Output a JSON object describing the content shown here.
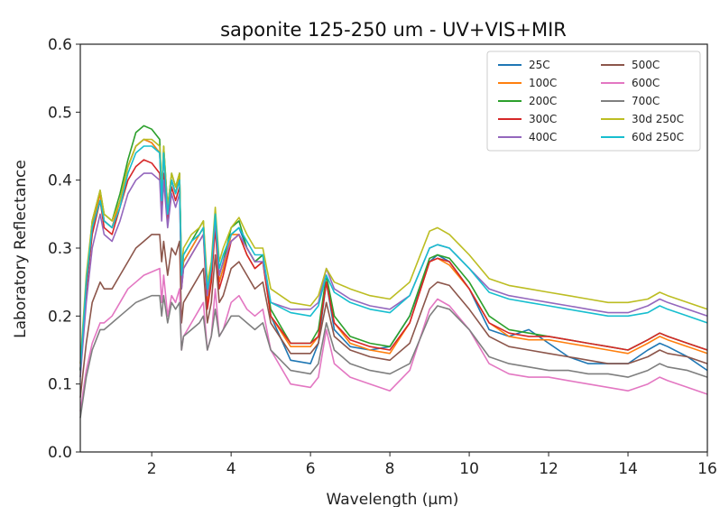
{
  "chart_data": {
    "type": "line",
    "title": "saponite 125-250 um - UV+VIS+MIR",
    "xlabel": "Wavelength (μm)",
    "ylabel": "Laboratory Reflectance",
    "xlim": [
      0.2,
      16
    ],
    "ylim": [
      0.0,
      0.6
    ],
    "xticks": [
      2,
      4,
      6,
      8,
      10,
      12,
      14,
      16
    ],
    "xtick_labels": [
      "2",
      "4",
      "6",
      "8",
      "10",
      "12",
      "14",
      "16"
    ],
    "yticks": [
      0.0,
      0.1,
      0.2,
      0.3,
      0.4,
      0.5,
      0.6
    ],
    "ytick_labels": [
      "0.0",
      "0.1",
      "0.2",
      "0.3",
      "0.4",
      "0.5",
      "0.6"
    ],
    "grid": false,
    "legend_position": "top-right",
    "x": [
      0.2,
      0.35,
      0.5,
      0.7,
      0.8,
      1.0,
      1.2,
      1.4,
      1.6,
      1.8,
      2.0,
      2.2,
      2.25,
      2.3,
      2.4,
      2.5,
      2.6,
      2.7,
      2.75,
      2.8,
      3.0,
      3.2,
      3.3,
      3.4,
      3.5,
      3.6,
      3.7,
      3.8,
      4.0,
      4.2,
      4.4,
      4.6,
      4.8,
      5.0,
      5.5,
      6.0,
      6.2,
      6.4,
      6.6,
      7.0,
      7.5,
      8.0,
      8.5,
      9.0,
      9.2,
      9.5,
      10.0,
      10.5,
      11.0,
      11.5,
      12.0,
      12.5,
      13.0,
      13.5,
      14.0,
      14.5,
      14.8,
      15.0,
      15.5,
      16.0
    ],
    "series": [
      {
        "name": "25C",
        "color": "#1f77b4",
        "values": [
          0.12,
          0.24,
          0.33,
          0.38,
          0.34,
          0.33,
          0.37,
          0.42,
          0.45,
          0.46,
          0.455,
          0.44,
          0.37,
          0.44,
          0.35,
          0.4,
          0.38,
          0.41,
          0.25,
          0.28,
          0.3,
          0.32,
          0.33,
          0.22,
          0.26,
          0.34,
          0.25,
          0.27,
          0.32,
          0.33,
          0.3,
          0.28,
          0.29,
          0.2,
          0.135,
          0.13,
          0.16,
          0.25,
          0.18,
          0.155,
          0.15,
          0.155,
          0.2,
          0.28,
          0.29,
          0.28,
          0.24,
          0.18,
          0.17,
          0.18,
          0.16,
          0.14,
          0.13,
          0.13,
          0.13,
          0.15,
          0.16,
          0.155,
          0.14,
          0.12
        ]
      },
      {
        "name": "100C",
        "color": "#ff7f0e",
        "values": [
          0.12,
          0.24,
          0.33,
          0.38,
          0.34,
          0.33,
          0.37,
          0.42,
          0.45,
          0.46,
          0.455,
          0.44,
          0.37,
          0.44,
          0.35,
          0.4,
          0.38,
          0.41,
          0.25,
          0.28,
          0.3,
          0.32,
          0.33,
          0.22,
          0.26,
          0.34,
          0.25,
          0.27,
          0.32,
          0.32,
          0.29,
          0.27,
          0.28,
          0.2,
          0.155,
          0.155,
          0.17,
          0.25,
          0.19,
          0.16,
          0.15,
          0.145,
          0.19,
          0.28,
          0.285,
          0.275,
          0.24,
          0.19,
          0.17,
          0.165,
          0.165,
          0.16,
          0.155,
          0.15,
          0.145,
          0.16,
          0.17,
          0.165,
          0.155,
          0.145
        ]
      },
      {
        "name": "200C",
        "color": "#2ca02c",
        "values": [
          0.12,
          0.25,
          0.34,
          0.385,
          0.35,
          0.34,
          0.38,
          0.43,
          0.47,
          0.48,
          0.475,
          0.46,
          0.38,
          0.45,
          0.36,
          0.41,
          0.39,
          0.41,
          0.26,
          0.29,
          0.31,
          0.33,
          0.34,
          0.23,
          0.27,
          0.35,
          0.26,
          0.28,
          0.33,
          0.34,
          0.3,
          0.28,
          0.29,
          0.21,
          0.16,
          0.16,
          0.18,
          0.26,
          0.2,
          0.17,
          0.16,
          0.155,
          0.2,
          0.285,
          0.29,
          0.285,
          0.25,
          0.2,
          0.18,
          0.175,
          0.17,
          0.165,
          0.16,
          0.155,
          0.15,
          0.165,
          0.175,
          0.17,
          0.16,
          0.15
        ]
      },
      {
        "name": "300C",
        "color": "#d62728",
        "values": [
          0.12,
          0.24,
          0.32,
          0.37,
          0.33,
          0.32,
          0.36,
          0.4,
          0.42,
          0.43,
          0.425,
          0.41,
          0.35,
          0.41,
          0.34,
          0.39,
          0.37,
          0.39,
          0.24,
          0.27,
          0.29,
          0.31,
          0.32,
          0.21,
          0.25,
          0.33,
          0.24,
          0.26,
          0.31,
          0.32,
          0.29,
          0.27,
          0.28,
          0.2,
          0.16,
          0.16,
          0.17,
          0.25,
          0.19,
          0.165,
          0.155,
          0.15,
          0.19,
          0.28,
          0.285,
          0.28,
          0.24,
          0.19,
          0.175,
          0.17,
          0.17,
          0.165,
          0.16,
          0.155,
          0.15,
          0.165,
          0.175,
          0.17,
          0.16,
          0.15
        ]
      },
      {
        "name": "400C",
        "color": "#9467bd",
        "values": [
          0.11,
          0.22,
          0.3,
          0.35,
          0.32,
          0.31,
          0.34,
          0.38,
          0.4,
          0.41,
          0.41,
          0.4,
          0.34,
          0.4,
          0.33,
          0.38,
          0.36,
          0.38,
          0.24,
          0.27,
          0.29,
          0.31,
          0.32,
          0.23,
          0.27,
          0.34,
          0.26,
          0.28,
          0.31,
          0.32,
          0.3,
          0.28,
          0.28,
          0.22,
          0.21,
          0.21,
          0.22,
          0.27,
          0.24,
          0.225,
          0.215,
          0.21,
          0.23,
          0.3,
          0.305,
          0.3,
          0.27,
          0.24,
          0.23,
          0.225,
          0.22,
          0.215,
          0.21,
          0.205,
          0.205,
          0.215,
          0.225,
          0.22,
          0.21,
          0.2
        ]
      },
      {
        "name": "500C",
        "color": "#8c564b",
        "values": [
          0.08,
          0.16,
          0.22,
          0.25,
          0.24,
          0.24,
          0.26,
          0.28,
          0.3,
          0.31,
          0.32,
          0.32,
          0.28,
          0.31,
          0.26,
          0.3,
          0.29,
          0.31,
          0.19,
          0.22,
          0.24,
          0.26,
          0.27,
          0.19,
          0.22,
          0.29,
          0.22,
          0.23,
          0.27,
          0.28,
          0.26,
          0.24,
          0.25,
          0.19,
          0.145,
          0.145,
          0.16,
          0.22,
          0.17,
          0.15,
          0.14,
          0.135,
          0.16,
          0.24,
          0.25,
          0.245,
          0.21,
          0.17,
          0.155,
          0.15,
          0.145,
          0.14,
          0.135,
          0.13,
          0.13,
          0.14,
          0.15,
          0.145,
          0.14,
          0.13
        ]
      },
      {
        "name": "600C",
        "color": "#e377c2",
        "values": [
          0.06,
          0.12,
          0.16,
          0.19,
          0.19,
          0.2,
          0.22,
          0.24,
          0.25,
          0.26,
          0.265,
          0.27,
          0.22,
          0.26,
          0.2,
          0.23,
          0.22,
          0.24,
          0.15,
          0.17,
          0.19,
          0.21,
          0.22,
          0.15,
          0.17,
          0.24,
          0.17,
          0.18,
          0.22,
          0.23,
          0.21,
          0.2,
          0.21,
          0.15,
          0.1,
          0.095,
          0.11,
          0.18,
          0.13,
          0.11,
          0.1,
          0.09,
          0.12,
          0.21,
          0.225,
          0.215,
          0.18,
          0.13,
          0.115,
          0.11,
          0.11,
          0.105,
          0.1,
          0.095,
          0.09,
          0.1,
          0.11,
          0.105,
          0.095,
          0.085
        ]
      },
      {
        "name": "700C",
        "color": "#7f7f7f",
        "values": [
          0.05,
          0.11,
          0.15,
          0.18,
          0.18,
          0.19,
          0.2,
          0.21,
          0.22,
          0.225,
          0.23,
          0.23,
          0.2,
          0.23,
          0.19,
          0.22,
          0.21,
          0.22,
          0.15,
          0.17,
          0.18,
          0.19,
          0.2,
          0.15,
          0.17,
          0.21,
          0.17,
          0.18,
          0.2,
          0.2,
          0.19,
          0.18,
          0.19,
          0.15,
          0.12,
          0.115,
          0.13,
          0.19,
          0.15,
          0.13,
          0.12,
          0.115,
          0.13,
          0.2,
          0.215,
          0.21,
          0.18,
          0.14,
          0.13,
          0.125,
          0.12,
          0.12,
          0.115,
          0.115,
          0.11,
          0.12,
          0.13,
          0.125,
          0.12,
          0.11
        ]
      },
      {
        "name": "30d 250C",
        "color": "#bcbd22",
        "values": [
          0.13,
          0.26,
          0.34,
          0.385,
          0.35,
          0.34,
          0.37,
          0.42,
          0.45,
          0.46,
          0.46,
          0.45,
          0.38,
          0.45,
          0.36,
          0.41,
          0.39,
          0.41,
          0.27,
          0.3,
          0.32,
          0.33,
          0.34,
          0.25,
          0.28,
          0.36,
          0.28,
          0.3,
          0.33,
          0.345,
          0.32,
          0.3,
          0.3,
          0.24,
          0.22,
          0.215,
          0.23,
          0.27,
          0.25,
          0.24,
          0.23,
          0.225,
          0.25,
          0.325,
          0.33,
          0.32,
          0.29,
          0.255,
          0.245,
          0.24,
          0.235,
          0.23,
          0.225,
          0.22,
          0.22,
          0.225,
          0.235,
          0.23,
          0.22,
          0.21
        ]
      },
      {
        "name": "60d 250C",
        "color": "#17becf",
        "values": [
          0.12,
          0.25,
          0.33,
          0.37,
          0.34,
          0.33,
          0.36,
          0.41,
          0.44,
          0.45,
          0.45,
          0.44,
          0.37,
          0.44,
          0.35,
          0.4,
          0.38,
          0.4,
          0.26,
          0.29,
          0.31,
          0.32,
          0.33,
          0.24,
          0.27,
          0.35,
          0.27,
          0.29,
          0.32,
          0.33,
          0.31,
          0.29,
          0.29,
          0.22,
          0.205,
          0.2,
          0.215,
          0.26,
          0.235,
          0.22,
          0.21,
          0.205,
          0.23,
          0.3,
          0.305,
          0.3,
          0.27,
          0.235,
          0.225,
          0.22,
          0.215,
          0.21,
          0.205,
          0.2,
          0.2,
          0.205,
          0.215,
          0.21,
          0.2,
          0.19
        ]
      }
    ],
    "legend_columns": 2
  }
}
